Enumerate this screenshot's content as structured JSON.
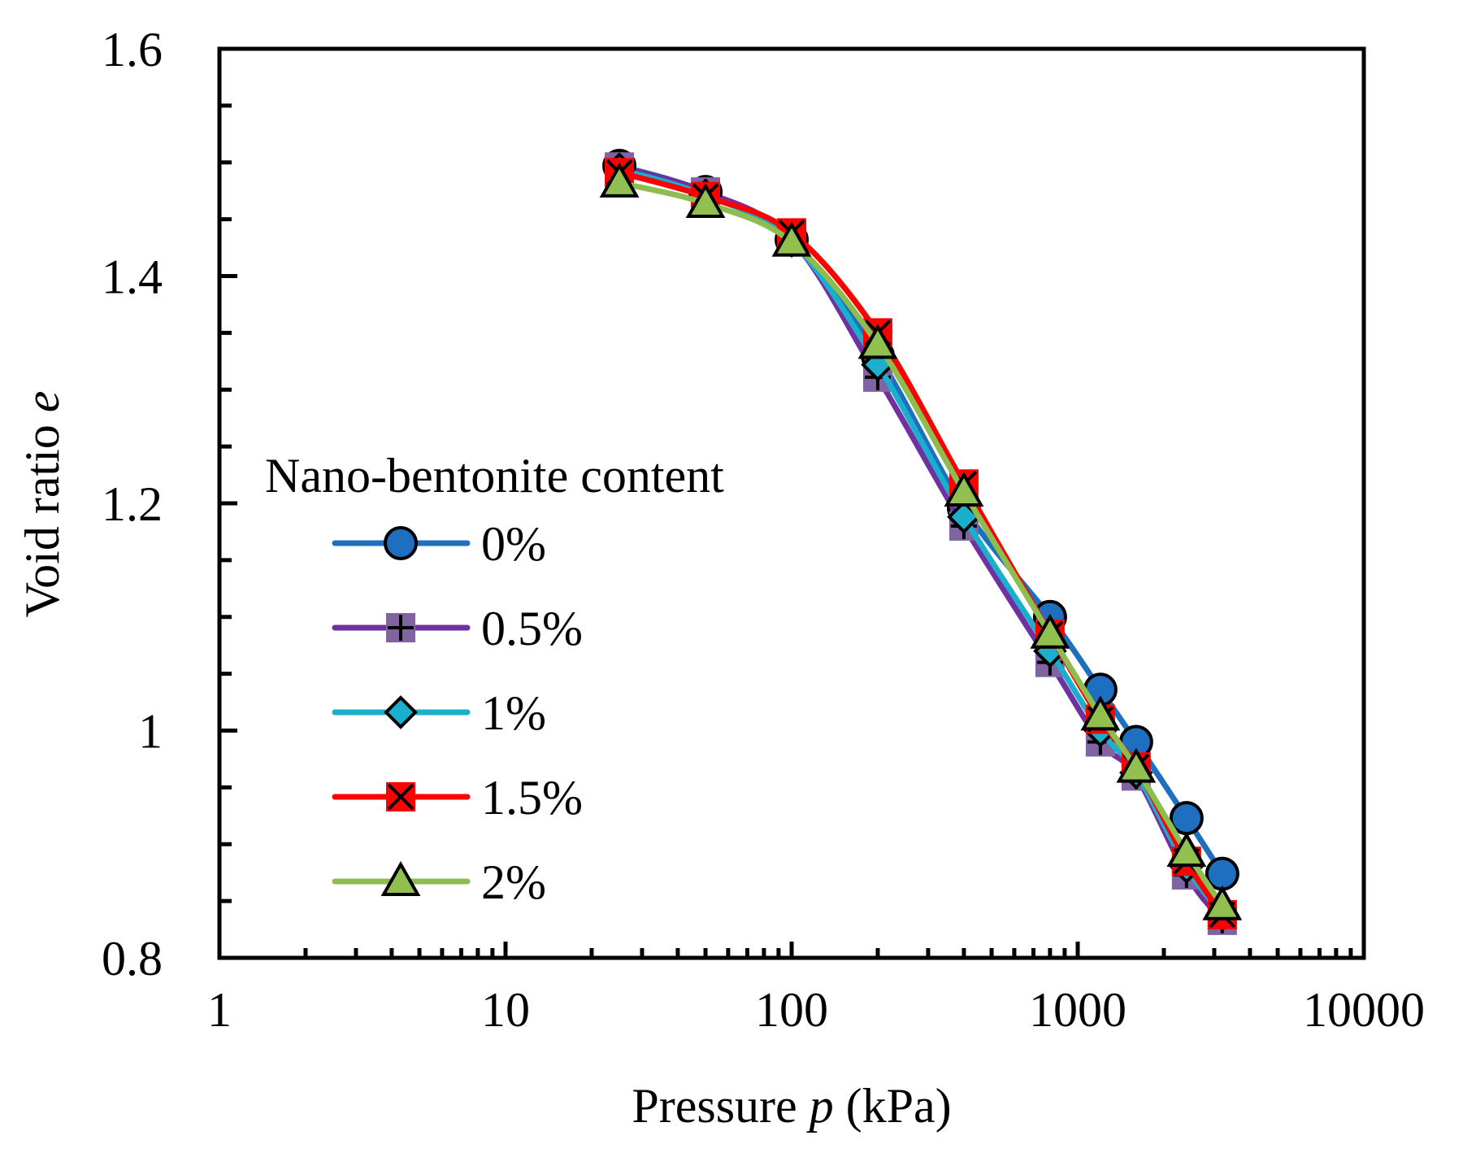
{
  "chart_data": {
    "type": "line",
    "xscale": "log",
    "xlim": [
      1,
      10000
    ],
    "ylim": [
      0.8,
      1.6
    ],
    "xticks": [
      1,
      10,
      100,
      1000,
      10000
    ],
    "xtick_labels": [
      "1",
      "10",
      "100",
      "1000",
      "10000"
    ],
    "yticks": [
      0.8,
      1.0,
      1.2,
      1.4,
      1.6
    ],
    "ytick_labels": [
      "0.8",
      "1",
      "1.2",
      "1.4",
      "1.6"
    ],
    "xlabel_pre": "Pressure ",
    "xlabel_var": "p",
    "xlabel_post": " (kPa)",
    "ylabel_pre": "Void ratio ",
    "ylabel_var": "e",
    "legend_title": "Nano-bentonite content",
    "legend_position": "left-middle",
    "series": [
      {
        "name": "0%",
        "color": "#1f6fc0",
        "marker_fill": "#1f6fc0",
        "marker": "circle",
        "x": [
          25,
          50,
          100,
          200,
          400,
          800,
          1200,
          1600,
          2400,
          3200
        ],
        "y": [
          1.497,
          1.474,
          1.432,
          1.33,
          1.196,
          1.1,
          1.036,
          0.99,
          0.923,
          0.874
        ]
      },
      {
        "name": "0.5%",
        "color": "#7030a0",
        "marker_fill": "#8064a2",
        "marker": "plus-square",
        "x": [
          25,
          50,
          100,
          200,
          400,
          800,
          1200,
          1600,
          2400,
          3200
        ],
        "y": [
          1.496,
          1.474,
          1.432,
          1.311,
          1.18,
          1.06,
          0.99,
          0.96,
          0.873,
          0.833
        ]
      },
      {
        "name": "1%",
        "color": "#1aafcc",
        "marker_fill": "#1aafcc",
        "marker": "diamond",
        "x": [
          25,
          50,
          100,
          200,
          400,
          800,
          1200,
          1600,
          2400,
          3200
        ],
        "y": [
          1.494,
          1.471,
          1.431,
          1.322,
          1.188,
          1.07,
          1.0,
          0.963,
          0.88,
          0.838
        ]
      },
      {
        "name": "1.5%",
        "color": "#ff0000",
        "marker_fill": "#ff0000",
        "marker": "x-square",
        "x": [
          25,
          50,
          100,
          200,
          400,
          800,
          1200,
          1600,
          2400,
          3200
        ],
        "y": [
          1.491,
          1.47,
          1.438,
          1.35,
          1.217,
          1.085,
          1.01,
          0.968,
          0.885,
          0.838
        ]
      },
      {
        "name": "2%",
        "color": "#8fbc4f",
        "marker_fill": "#92c050",
        "marker": "triangle",
        "x": [
          25,
          50,
          100,
          200,
          400,
          800,
          1200,
          1600,
          2400,
          3200
        ],
        "y": [
          1.482,
          1.464,
          1.43,
          1.34,
          1.21,
          1.085,
          1.013,
          0.967,
          0.893,
          0.846
        ]
      }
    ]
  }
}
